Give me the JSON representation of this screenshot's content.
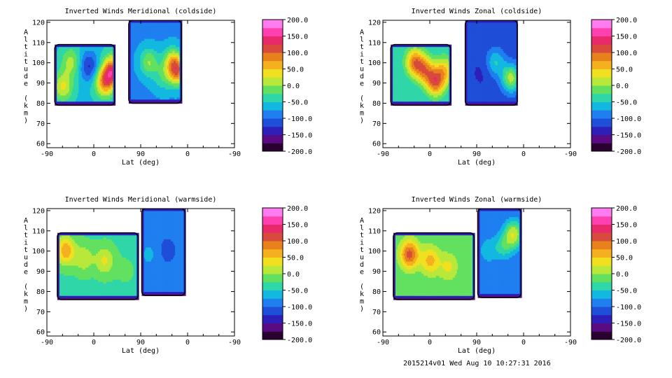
{
  "chart_data": [
    {
      "type": "heatmap",
      "title": "Inverted Winds Meridional (coldside)",
      "xlabel": "Lat (deg)",
      "ylabel": "Altitude (km)",
      "x_ticks": [
        "-90",
        "0",
        "90",
        "0",
        "-90"
      ],
      "y_ticks": [
        60,
        70,
        80,
        90,
        100,
        110,
        120
      ],
      "ylim": [
        58,
        121
      ],
      "colorbar": {
        "min": -200,
        "max": 200,
        "ticks": [
          "200.0",
          "150.0",
          "100.0",
          "50.0",
          "0.0",
          "-50.0",
          "-100.0",
          "-150.0",
          "-200.0"
        ]
      },
      "regions": [
        {
          "x0": -75,
          "x1": 40,
          "y0": 79,
          "y1": 109,
          "base": -55
        },
        {
          "x0": 67,
          "x1": 168,
          "y0": 80,
          "y1": 121,
          "base": -80
        }
      ],
      "peaks": [
        {
          "x": -10,
          "y": 98,
          "v": -130
        },
        {
          "x": -60,
          "y": 88,
          "v": 30
        },
        {
          "x": -45,
          "y": 100,
          "v": 10
        },
        {
          "x": 20,
          "y": 90,
          "v": 80
        },
        {
          "x": 35,
          "y": 96,
          "v": 110
        },
        {
          "x": 105,
          "y": 100,
          "v": 0
        },
        {
          "x": 130,
          "y": 92,
          "v": -40
        },
        {
          "x": 150,
          "y": 100,
          "v": 30
        },
        {
          "x": 160,
          "y": 95,
          "v": 60
        }
      ]
    },
    {
      "type": "heatmap",
      "title": "Inverted Winds Zonal (coldside)",
      "xlabel": "Lat (deg)",
      "ylabel": "Altitude (km)",
      "x_ticks": [
        "-90",
        "0",
        "90",
        "0",
        "-90"
      ],
      "y_ticks": [
        60,
        70,
        80,
        90,
        100,
        110,
        120
      ],
      "ylim": [
        58,
        121
      ],
      "colorbar": {
        "min": -200,
        "max": 200,
        "ticks": [
          "200.0",
          "150.0",
          "100.0",
          "50.0",
          "0.0",
          "-50.0",
          "-100.0",
          "-150.0",
          "-200.0"
        ]
      },
      "regions": [
        {
          "x0": -75,
          "x1": 40,
          "y0": 79,
          "y1": 109,
          "base": -50
        },
        {
          "x0": 68,
          "x1": 168,
          "y0": 79,
          "y1": 121,
          "base": -120
        }
      ],
      "peaks": [
        {
          "x": -30,
          "y": 100,
          "v": 80
        },
        {
          "x": -10,
          "y": 96,
          "v": 60
        },
        {
          "x": 10,
          "y": 90,
          "v": 90
        },
        {
          "x": 28,
          "y": 96,
          "v": 40
        },
        {
          "x": 100,
          "y": 95,
          "v": -130
        },
        {
          "x": 125,
          "y": 100,
          "v": -50
        },
        {
          "x": 155,
          "y": 92,
          "v": 10
        }
      ]
    },
    {
      "type": "heatmap",
      "title": "Inverted Winds Meridional (warmside)",
      "xlabel": "Lat (deg)",
      "ylabel": "Altitude (km)",
      "x_ticks": [
        "-90",
        "0",
        "90",
        "0",
        "-90"
      ],
      "y_ticks": [
        60,
        70,
        80,
        90,
        100,
        110,
        120
      ],
      "ylim": [
        58,
        121
      ],
      "colorbar": {
        "min": -200,
        "max": 200,
        "ticks": [
          "200.0",
          "150.0",
          "100.0",
          "50.0",
          "0.0",
          "-50.0",
          "-100.0",
          "-150.0",
          "-200.0"
        ]
      },
      "regions": [
        {
          "x0": -70,
          "x1": 85,
          "y0": 76,
          "y1": 109,
          "base": -30
        },
        {
          "x0": 92,
          "x1": 175,
          "y0": 78,
          "y1": 121,
          "base": -90
        }
      ],
      "peaks": [
        {
          "x": -55,
          "y": 100,
          "v": 70
        },
        {
          "x": -20,
          "y": 96,
          "v": 20
        },
        {
          "x": 20,
          "y": 95,
          "v": 30
        },
        {
          "x": 60,
          "y": 90,
          "v": -20
        },
        {
          "x": 105,
          "y": 98,
          "v": -70
        },
        {
          "x": 140,
          "y": 100,
          "v": -110
        }
      ]
    },
    {
      "type": "heatmap",
      "title": "Inverted Winds Zonal (warmside)",
      "xlabel": "Lat (deg)",
      "ylabel": "Altitude (km)",
      "x_ticks": [
        "-90",
        "0",
        "90",
        "0",
        "-90"
      ],
      "y_ticks": [
        60,
        70,
        80,
        90,
        100,
        110,
        120
      ],
      "ylim": [
        58,
        121
      ],
      "colorbar": {
        "min": -200,
        "max": 200,
        "ticks": [
          "200.0",
          "150.0",
          "100.0",
          "50.0",
          "0.0",
          "-50.0",
          "-100.0",
          "-150.0",
          "-200.0"
        ]
      },
      "regions": [
        {
          "x0": -70,
          "x1": 85,
          "y0": 76,
          "y1": 109,
          "base": -20
        },
        {
          "x0": 92,
          "x1": 175,
          "y0": 77,
          "y1": 121,
          "base": -100
        }
      ],
      "peaks": [
        {
          "x": -40,
          "y": 98,
          "v": 110
        },
        {
          "x": 0,
          "y": 95,
          "v": 60
        },
        {
          "x": 35,
          "y": 92,
          "v": 30
        },
        {
          "x": 110,
          "y": 100,
          "v": -60
        },
        {
          "x": 140,
          "y": 102,
          "v": -40
        },
        {
          "x": 160,
          "y": 108,
          "v": 20
        }
      ]
    }
  ],
  "footer": "2015214v01 Wed Aug 10 10:27:31 2016",
  "colormap": [
    "#2a0030",
    "#5a0a82",
    "#2d1fb8",
    "#1f4ed8",
    "#1f7ff0",
    "#12b8e0",
    "#2ed6a8",
    "#63e060",
    "#b8e83a",
    "#f0e020",
    "#f5b020",
    "#e8801c",
    "#d84a3c",
    "#e82a6a",
    "#ff40b0",
    "#ff7cf0"
  ]
}
